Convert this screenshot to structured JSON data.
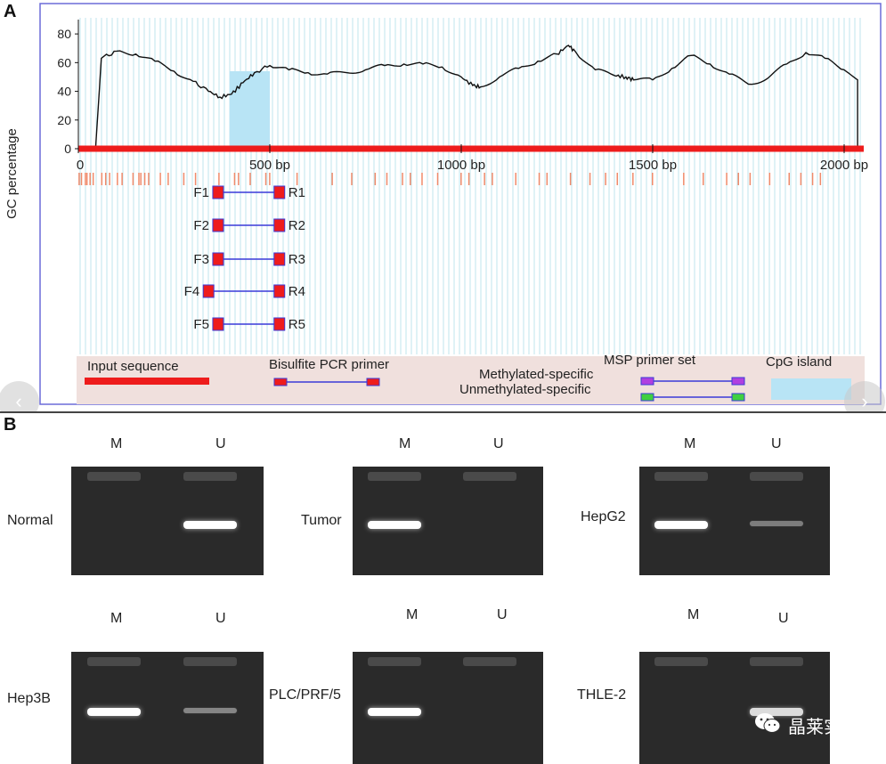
{
  "panelA": {
    "letter": "A",
    "ylabel": "GC percentage",
    "yticks": [
      "0",
      "20",
      "40",
      "60",
      "80"
    ],
    "xticks": [
      "0",
      "500 bp",
      "1000 bp",
      "1500 bp",
      "2000 bp"
    ],
    "primers": [
      "F1",
      "R1",
      "F2",
      "R2",
      "F3",
      "R3",
      "F4",
      "R4",
      "F5",
      "R5"
    ],
    "legend": {
      "input_sequence": "Input sequence",
      "bisulfite_pcr_primer": "Bisulfite PCR primer",
      "msp_primer_set": "MSP primer set",
      "methylated": "Methylated-specific",
      "unmethylated": "Unmethylated-specific",
      "cpg_island": "CpG island"
    }
  },
  "chart_data": {
    "type": "line",
    "title": "",
    "xlabel": "",
    "ylabel": "GC percentage",
    "xlim": [
      0,
      2050
    ],
    "ylim": [
      0,
      90
    ],
    "x": [
      45,
      60,
      100,
      150,
      200,
      250,
      300,
      340,
      370,
      400,
      430,
      460,
      500,
      550,
      600,
      650,
      700,
      750,
      800,
      850,
      900,
      950,
      1000,
      1030,
      1050,
      1100,
      1150,
      1200,
      1250,
      1280,
      1300,
      1350,
      1400,
      1430,
      1450,
      1500,
      1550,
      1600,
      1650,
      1700,
      1750,
      1800,
      1850,
      1900,
      1950,
      2000,
      2035
    ],
    "series": [
      {
        "name": "GC percentage",
        "values": [
          0,
          63,
          68,
          66,
          61,
          54,
          47,
          40,
          36,
          38,
          46,
          53,
          58,
          55,
          53,
          52,
          53,
          55,
          58,
          59,
          59,
          57,
          50,
          44,
          43,
          50,
          56,
          61,
          66,
          72,
          67,
          55,
          51,
          50,
          48,
          48,
          56,
          65,
          59,
          52,
          45,
          49,
          59,
          67,
          63,
          55,
          48
        ]
      }
    ],
    "cpg_island": [
      395,
      500
    ],
    "primer_sets": [
      {
        "forward": "F1",
        "reverse": "R1",
        "start": 365,
        "end": 525
      },
      {
        "forward": "F2",
        "reverse": "R2",
        "start": 365,
        "end": 525
      },
      {
        "forward": "F3",
        "reverse": "R3",
        "start": 365,
        "end": 525
      },
      {
        "forward": "F4",
        "reverse": "R4",
        "start": 340,
        "end": 525
      },
      {
        "forward": "F5",
        "reverse": "R5",
        "start": 365,
        "end": 525
      }
    ]
  },
  "panelB": {
    "letter": "B",
    "gels": [
      {
        "label": "Normal",
        "m": "M",
        "u": "U"
      },
      {
        "label": "Tumor",
        "m": "M",
        "u": "U"
      },
      {
        "label": "HepG2",
        "m": "M",
        "u": "U"
      },
      {
        "label": "Hep3B",
        "m": "M",
        "u": "U"
      },
      {
        "label": "PLC/PRF/5",
        "m": "M",
        "u": "U"
      },
      {
        "label": "THLE-2",
        "m": "M",
        "u": "U"
      }
    ],
    "band_intensity": [
      {
        "m": 0.0,
        "u": 1.0
      },
      {
        "m": 1.0,
        "u": 0.0
      },
      {
        "m": 1.0,
        "u": 0.25
      },
      {
        "m": 1.0,
        "u": 0.3
      },
      {
        "m": 1.0,
        "u": 0.0
      },
      {
        "m": 0.0,
        "u": 0.8
      }
    ]
  },
  "watermark": "晶莱实验",
  "nav": {
    "prev": "‹",
    "next": "›"
  }
}
